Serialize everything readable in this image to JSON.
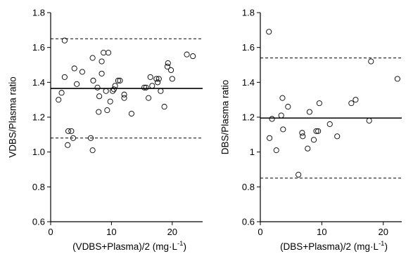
{
  "chart_data": [
    {
      "type": "scatter",
      "title": "",
      "xlabel": "(VDBS+Plasma)/2 (mg·L",
      "xlabel_sup": "-1",
      "xlabel_close": ")",
      "ylabel": "VDBS/Plasma ratio",
      "xlim": [
        0,
        25
      ],
      "ylim": [
        0.6,
        1.8
      ],
      "xticks": [
        0,
        10,
        20
      ],
      "yticks": [
        0.6,
        0.8,
        1.0,
        1.2,
        1.4,
        1.6,
        1.8
      ],
      "ytick_labels": [
        "0.6",
        "0.8",
        "1.0",
        "1.2",
        "1.4",
        "1.6",
        "1.8"
      ],
      "mean_line": 1.365,
      "upper_limit": 1.65,
      "lower_limit": 1.08,
      "grid": false,
      "marker": "open-circle",
      "points": [
        [
          1.3,
          1.3
        ],
        [
          1.8,
          1.34
        ],
        [
          2.3,
          1.64
        ],
        [
          2.3,
          1.43
        ],
        [
          2.8,
          1.04
        ],
        [
          2.9,
          1.12
        ],
        [
          3.4,
          1.12
        ],
        [
          3.7,
          1.08
        ],
        [
          3.9,
          1.48
        ],
        [
          4.3,
          1.39
        ],
        [
          5.2,
          1.46
        ],
        [
          6.6,
          1.08
        ],
        [
          6.9,
          1.01
        ],
        [
          6.9,
          1.54
        ],
        [
          7.0,
          1.41
        ],
        [
          7.7,
          1.37
        ],
        [
          7.9,
          1.23
        ],
        [
          8.0,
          1.32
        ],
        [
          8.4,
          1.45
        ],
        [
          8.4,
          1.52
        ],
        [
          8.7,
          1.57
        ],
        [
          9.1,
          1.35
        ],
        [
          9.3,
          1.24
        ],
        [
          9.5,
          1.57
        ],
        [
          9.8,
          1.29
        ],
        [
          10.2,
          1.35
        ],
        [
          10.4,
          1.36
        ],
        [
          10.6,
          1.38
        ],
        [
          11.1,
          1.41
        ],
        [
          11.4,
          1.41
        ],
        [
          12.1,
          1.33
        ],
        [
          12.1,
          1.31
        ],
        [
          13.3,
          1.22
        ],
        [
          15.4,
          1.37
        ],
        [
          15.7,
          1.37
        ],
        [
          16.1,
          1.31
        ],
        [
          16.4,
          1.43
        ],
        [
          16.7,
          1.38
        ],
        [
          17.4,
          1.42
        ],
        [
          17.8,
          1.42
        ],
        [
          17.6,
          1.4
        ],
        [
          18.1,
          1.35
        ],
        [
          18.7,
          1.26
        ],
        [
          19.2,
          1.49
        ],
        [
          19.3,
          1.51
        ],
        [
          19.8,
          1.47
        ],
        [
          20.0,
          1.42
        ],
        [
          22.4,
          1.56
        ],
        [
          23.4,
          1.55
        ]
      ]
    },
    {
      "type": "scatter",
      "title": "",
      "xlabel": "(DBS+Plasma)/2 (mg·L",
      "xlabel_sup": "-1",
      "xlabel_close": ")",
      "ylabel": "DBS/Plasma ratio",
      "xlim": [
        0,
        23
      ],
      "ylim": [
        0.6,
        1.8
      ],
      "xticks": [
        0,
        10,
        20
      ],
      "yticks": [
        0.6,
        0.8,
        1.0,
        1.2,
        1.4,
        1.6,
        1.8
      ],
      "ytick_labels": [
        "0.6",
        "0.8",
        "1",
        "1.2",
        "1.4",
        "1.6",
        "1.8"
      ],
      "mean_line": 1.195,
      "upper_limit": 1.54,
      "lower_limit": 0.85,
      "grid": false,
      "marker": "open-circle",
      "points": [
        [
          1.4,
          1.69
        ],
        [
          1.5,
          1.08
        ],
        [
          1.9,
          1.19
        ],
        [
          2.6,
          1.01
        ],
        [
          3.4,
          1.21
        ],
        [
          3.6,
          1.31
        ],
        [
          3.7,
          1.13
        ],
        [
          4.5,
          1.26
        ],
        [
          6.2,
          0.87
        ],
        [
          6.8,
          1.11
        ],
        [
          6.9,
          1.09
        ],
        [
          7.7,
          1.02
        ],
        [
          8.0,
          1.23
        ],
        [
          8.7,
          1.07
        ],
        [
          9.1,
          1.12
        ],
        [
          9.4,
          1.12
        ],
        [
          9.6,
          1.28
        ],
        [
          11.3,
          1.16
        ],
        [
          12.5,
          1.09
        ],
        [
          14.8,
          1.28
        ],
        [
          15.5,
          1.3
        ],
        [
          17.7,
          1.18
        ],
        [
          18.0,
          1.52
        ],
        [
          22.3,
          1.42
        ]
      ]
    }
  ]
}
